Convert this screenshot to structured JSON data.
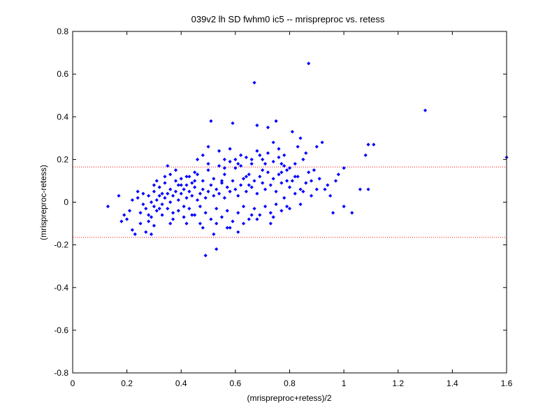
{
  "chart_data": {
    "type": "scatter",
    "title": "039v2 lh SD fwhm0 ic5 -- mrispreproc vs. retess",
    "xlabel": "(mrispreproc+retess)/2",
    "ylabel": "(mrispreproc-retess)",
    "xlim": [
      0,
      1.6
    ],
    "ylim": [
      -0.8,
      0.8
    ],
    "xticks": [
      0,
      0.2,
      0.4,
      0.6,
      0.8,
      1,
      1.2,
      1.4,
      1.6
    ],
    "yticks": [
      -0.8,
      -0.6,
      -0.4,
      -0.2,
      0,
      0.2,
      0.4,
      0.6,
      0.8
    ],
    "xtick_labels": [
      "0",
      "0.2",
      "0.4",
      "0.6",
      "0.8",
      "1",
      "1.2",
      "1.4",
      "1.6"
    ],
    "ytick_labels": [
      "-0.8",
      "-0.6",
      "-0.4",
      "-0.2",
      "0",
      "0.2",
      "0.4",
      "0.6",
      "0.8"
    ],
    "grid": false,
    "reference_lines": [
      {
        "y": 0.165,
        "style": "dotted",
        "color": "#ff0000"
      },
      {
        "y": -0.165,
        "style": "dotted",
        "color": "#ff0000"
      }
    ],
    "series": [
      {
        "marker": "diamond",
        "color": "#0000ff",
        "points": [
          [
            0.13,
            -0.02
          ],
          [
            0.17,
            0.03
          ],
          [
            0.18,
            -0.09
          ],
          [
            0.19,
            -0.06
          ],
          [
            0.2,
            -0.08
          ],
          [
            0.21,
            -0.04
          ],
          [
            0.22,
            -0.13
          ],
          [
            0.23,
            -0.15
          ],
          [
            0.24,
            0.05
          ],
          [
            0.25,
            -0.1
          ],
          [
            0.27,
            -0.14
          ],
          [
            0.28,
            -0.06
          ],
          [
            0.29,
            -0.15
          ],
          [
            0.3,
            0.08
          ],
          [
            0.31,
            0.1
          ],
          [
            0.32,
            -0.03
          ],
          [
            0.34,
            0.12
          ],
          [
            0.35,
            0.17
          ],
          [
            0.36,
            0.13
          ],
          [
            0.37,
            -0.05
          ],
          [
            0.38,
            0.15
          ],
          [
            0.4,
            0.11
          ],
          [
            0.41,
            -0.02
          ],
          [
            0.42,
            0.08
          ],
          [
            0.43,
            0.12
          ],
          [
            0.44,
            -0.06
          ],
          [
            0.45,
            0.14
          ],
          [
            0.46,
            0.2
          ],
          [
            0.47,
            -0.1
          ],
          [
            0.48,
            0.22
          ],
          [
            0.49,
            -0.25
          ],
          [
            0.5,
            0.26
          ],
          [
            0.51,
            0.38
          ],
          [
            0.52,
            -0.15
          ],
          [
            0.53,
            -0.22
          ],
          [
            0.54,
            0.24
          ],
          [
            0.55,
            0.1
          ],
          [
            0.56,
            0.2
          ],
          [
            0.57,
            -0.12
          ],
          [
            0.58,
            0.25
          ],
          [
            0.59,
            0.37
          ],
          [
            0.6,
            0.16
          ],
          [
            0.61,
            -0.14
          ],
          [
            0.62,
            0.22
          ],
          [
            0.64,
            0.12
          ],
          [
            0.65,
            0.08
          ],
          [
            0.66,
            -0.06
          ],
          [
            0.67,
            0.56
          ],
          [
            0.68,
            0.36
          ],
          [
            0.69,
            0.22
          ],
          [
            0.7,
            0.15
          ],
          [
            0.72,
            0.35
          ],
          [
            0.73,
            -0.1
          ],
          [
            0.74,
            0.28
          ],
          [
            0.75,
            0.38
          ],
          [
            0.76,
            0.25
          ],
          [
            0.77,
            0.18
          ],
          [
            0.78,
            0.22
          ],
          [
            0.79,
            0.1
          ],
          [
            0.8,
            0.16
          ],
          [
            0.81,
            0.33
          ],
          [
            0.82,
            0.12
          ],
          [
            0.83,
            0.26
          ],
          [
            0.84,
            0.3
          ],
          [
            0.85,
            0.2
          ],
          [
            0.86,
            0.23
          ],
          [
            0.87,
            0.65
          ],
          [
            0.88,
            0.1
          ],
          [
            0.89,
            0.15
          ],
          [
            0.9,
            0.26
          ],
          [
            0.92,
            0.28
          ],
          [
            0.94,
            0.08
          ],
          [
            0.96,
            -0.05
          ],
          [
            0.98,
            0.13
          ],
          [
            1.0,
            -0.02
          ],
          [
            1.0,
            0.16
          ],
          [
            1.03,
            -0.05
          ],
          [
            1.08,
            0.22
          ],
          [
            1.09,
            0.27
          ],
          [
            1.09,
            0.06
          ],
          [
            1.11,
            0.27
          ],
          [
            1.3,
            0.43
          ],
          [
            1.6,
            0.21
          ],
          [
            0.22,
            0.01
          ],
          [
            0.24,
            0.02
          ],
          [
            0.26,
            -0.01
          ],
          [
            0.28,
            0.03
          ],
          [
            0.29,
            0.0
          ],
          [
            0.3,
            -0.02
          ],
          [
            0.31,
            0.01
          ],
          [
            0.32,
            0.03
          ],
          [
            0.33,
            -0.01
          ],
          [
            0.34,
            0.02
          ],
          [
            0.35,
            0.04
          ],
          [
            0.36,
            0.0
          ],
          [
            0.37,
            0.03
          ],
          [
            0.38,
            0.05
          ],
          [
            0.39,
            0.01
          ],
          [
            0.4,
            0.04
          ],
          [
            0.41,
            0.06
          ],
          [
            0.42,
            0.02
          ],
          [
            0.43,
            0.05
          ],
          [
            0.44,
            0.03
          ],
          [
            0.45,
            0.07
          ],
          [
            0.46,
            0.01
          ],
          [
            0.47,
            0.04
          ],
          [
            0.48,
            0.06
          ],
          [
            0.49,
            0.02
          ],
          [
            0.5,
            0.05
          ],
          [
            0.51,
            0.08
          ],
          [
            0.52,
            0.03
          ],
          [
            0.53,
            0.06
          ],
          [
            0.54,
            0.04
          ],
          [
            0.55,
            0.09
          ],
          [
            0.56,
            0.02
          ],
          [
            0.57,
            0.07
          ],
          [
            0.58,
            0.05
          ],
          [
            0.59,
            0.1
          ],
          [
            0.6,
            0.06
          ],
          [
            0.61,
            0.03
          ],
          [
            0.62,
            0.08
          ],
          [
            0.63,
            0.11
          ],
          [
            0.64,
            0.05
          ],
          [
            0.65,
            0.13
          ],
          [
            0.66,
            0.07
          ],
          [
            0.67,
            0.1
          ],
          [
            0.68,
            0.04
          ],
          [
            0.69,
            0.12
          ],
          [
            0.7,
            0.09
          ],
          [
            0.71,
            0.06
          ],
          [
            0.72,
            0.14
          ],
          [
            0.73,
            0.08
          ],
          [
            0.74,
            0.11
          ],
          [
            0.75,
            0.05
          ],
          [
            0.76,
            0.13
          ],
          [
            0.77,
            0.09
          ],
          [
            0.78,
            0.02
          ],
          [
            0.79,
            0.15
          ],
          [
            0.8,
            0.07
          ],
          [
            0.81,
            0.1
          ],
          [
            0.82,
            0.04
          ],
          [
            0.83,
            0.12
          ],
          [
            0.84,
            0.06
          ],
          [
            0.86,
            0.09
          ],
          [
            0.88,
            0.03
          ],
          [
            0.25,
            -0.05
          ],
          [
            0.27,
            -0.03
          ],
          [
            0.29,
            -0.07
          ],
          [
            0.31,
            -0.04
          ],
          [
            0.33,
            -0.06
          ],
          [
            0.35,
            -0.03
          ],
          [
            0.37,
            -0.08
          ],
          [
            0.39,
            -0.04
          ],
          [
            0.41,
            -0.07
          ],
          [
            0.43,
            -0.03
          ],
          [
            0.45,
            -0.06
          ],
          [
            0.47,
            -0.02
          ],
          [
            0.49,
            -0.05
          ],
          [
            0.51,
            -0.08
          ],
          [
            0.53,
            -0.03
          ],
          [
            0.55,
            -0.07
          ],
          [
            0.57,
            -0.04
          ],
          [
            0.59,
            -0.09
          ],
          [
            0.61,
            -0.05
          ],
          [
            0.63,
            -0.02
          ],
          [
            0.65,
            -0.08
          ],
          [
            0.67,
            -0.03
          ],
          [
            0.69,
            -0.06
          ],
          [
            0.71,
            -0.02
          ],
          [
            0.73,
            -0.05
          ],
          [
            0.75,
            -0.01
          ],
          [
            0.77,
            -0.04
          ],
          [
            0.8,
            -0.03
          ],
          [
            0.84,
            -0.01
          ],
          [
            0.3,
            0.05
          ],
          [
            0.32,
            0.07
          ],
          [
            0.34,
            0.09
          ],
          [
            0.36,
            0.06
          ],
          [
            0.38,
            0.1
          ],
          [
            0.4,
            0.08
          ],
          [
            0.42,
            0.12
          ],
          [
            0.44,
            0.09
          ],
          [
            0.46,
            0.13
          ],
          [
            0.48,
            0.1
          ],
          [
            0.5,
            0.15
          ],
          [
            0.52,
            0.11
          ],
          [
            0.54,
            0.17
          ],
          [
            0.56,
            0.13
          ],
          [
            0.58,
            0.19
          ],
          [
            0.6,
            0.2
          ],
          [
            0.62,
            0.17
          ],
          [
            0.64,
            0.21
          ],
          [
            0.66,
            0.18
          ],
          [
            0.68,
            0.24
          ],
          [
            0.7,
            0.2
          ],
          [
            0.72,
            0.23
          ],
          [
            0.74,
            0.19
          ],
          [
            0.76,
            0.21
          ],
          [
            0.78,
            0.17
          ],
          [
            0.26,
            0.04
          ],
          [
            0.28,
            -0.09
          ],
          [
            0.3,
            -0.11
          ],
          [
            0.33,
            0.04
          ],
          [
            0.36,
            -0.1
          ],
          [
            0.39,
            0.08
          ],
          [
            0.42,
            -0.1
          ],
          [
            0.45,
            0.1
          ],
          [
            0.48,
            -0.12
          ],
          [
            0.5,
            0.18
          ],
          [
            0.53,
            -0.1
          ],
          [
            0.56,
            0.16
          ],
          [
            0.58,
            -0.12
          ],
          [
            0.61,
            0.18
          ],
          [
            0.63,
            -0.1
          ],
          [
            0.66,
            0.2
          ],
          [
            0.68,
            -0.08
          ],
          [
            0.71,
            0.18
          ],
          [
            0.74,
            -0.07
          ],
          [
            0.77,
            0.14
          ],
          [
            0.79,
            -0.02
          ],
          [
            0.82,
            0.18
          ],
          [
            0.85,
            0.05
          ],
          [
            0.87,
            0.14
          ],
          [
            0.9,
            0.06
          ],
          [
            0.93,
            0.06
          ],
          [
            0.91,
            0.11
          ],
          [
            0.95,
            0.03
          ],
          [
            0.97,
            0.1
          ],
          [
            1.06,
            0.06
          ]
        ]
      }
    ]
  }
}
